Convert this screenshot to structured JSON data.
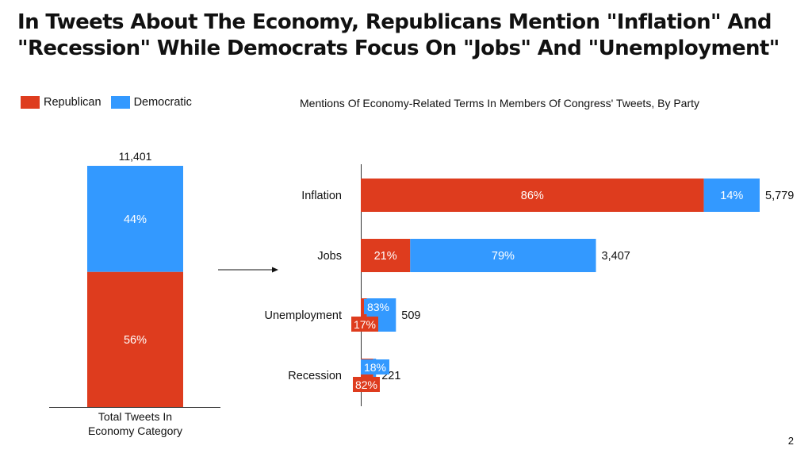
{
  "title": "In Tweets About The Economy, Republicans Mention \"Inflation\" And \"Recession\" While Democrats Focus On \"Jobs\" And \"Unemployment\"",
  "legend": {
    "republican": "Republican",
    "democratic": "Democratic"
  },
  "colors": {
    "republican": "#de3c1e",
    "democratic": "#3399ff",
    "axis": "#333333"
  },
  "subtitle": "Mentions Of Economy-Related Terms In Members Of Congress' Tweets, By Party",
  "page_number": "2",
  "chart_data": [
    {
      "type": "bar",
      "stacked": true,
      "categories": [
        "Total Tweets In Economy Category"
      ],
      "series": [
        {
          "name": "Republican",
          "values_pct": [
            56
          ],
          "labels": [
            "56%"
          ]
        },
        {
          "name": "Democratic",
          "values_pct": [
            44
          ],
          "labels": [
            "44%"
          ]
        }
      ],
      "totals": [
        11401
      ],
      "total_labels": [
        "11,401"
      ],
      "category_label_lines": [
        "Total Tweets In",
        "Economy Category"
      ]
    },
    {
      "type": "bar",
      "orientation": "horizontal",
      "stacked": true,
      "categories": [
        "Inflation",
        "Jobs",
        "Unemployment",
        "Recession"
      ],
      "totals": [
        5779,
        3407,
        509,
        221
      ],
      "total_labels": [
        "5,779",
        "3,407",
        "509",
        "221"
      ],
      "series": [
        {
          "name": "Republican",
          "values_pct": [
            86,
            21,
            17,
            82
          ],
          "labels": [
            "86%",
            "21%",
            "17%",
            "82%"
          ]
        },
        {
          "name": "Democratic",
          "values_pct": [
            14,
            79,
            83,
            18
          ],
          "labels": [
            "14%",
            "79%",
            "83%",
            "18%"
          ]
        }
      ]
    }
  ]
}
